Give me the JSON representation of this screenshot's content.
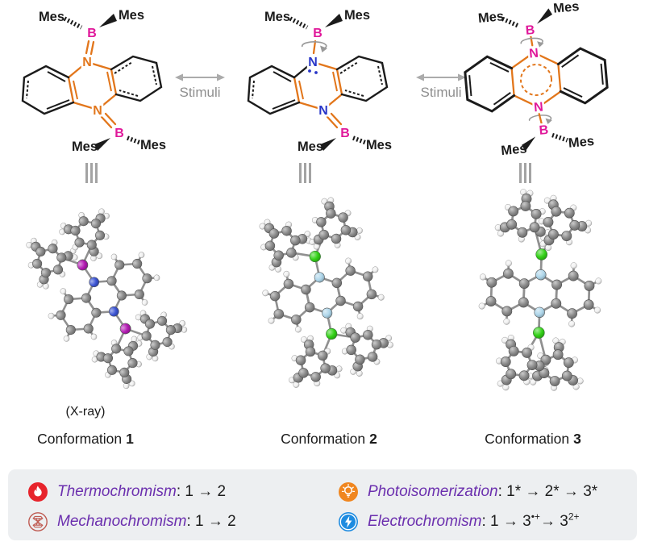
{
  "top_row": {
    "stimuli_label": "Stimuli",
    "structures": [
      {
        "labels": {
          "mes_tl": "Mes",
          "mes_tr": "Mes",
          "mes_bl": "Mes",
          "mes_br": "Mes",
          "b_top": "B",
          "b_bottom": "B",
          "n_top": "N",
          "n_bottom": "N"
        }
      },
      {
        "labels": {
          "mes_tl": "Mes",
          "mes_tr": "Mes",
          "mes_bl": "Mes",
          "mes_br": "Mes",
          "b_top": "B",
          "b_bottom": "B",
          "n_top": "N",
          "n_bottom": "N"
        }
      },
      {
        "labels": {
          "mes_tl": "Mes",
          "mes_tr": "Mes",
          "mes_bl": "Mes",
          "mes_br": "Mes",
          "b_top": "B",
          "b_bottom": "B",
          "n_top": "N",
          "n_bottom": "N"
        }
      }
    ]
  },
  "middle_row": {
    "xray_note": "(X-ray)",
    "conformations": [
      {
        "label": "Conformation",
        "number": "1"
      },
      {
        "label": "Conformation",
        "number": "2"
      },
      {
        "label": "Conformation",
        "number": "3"
      }
    ]
  },
  "colors": {
    "bond_orange": "#e2761b",
    "boron_label_magenta": "#e0189a",
    "nitrogen_blue": "#2936c8",
    "gray_arrow": "#ababab",
    "stimuli_text": "#8f8f8f",
    "legend_background": "#edeff1",
    "legend_name_purple": "#6b2fae"
  },
  "molecules": [
    {
      "carbon": "#8a8a8a",
      "hydrogen": "#f1f1f1",
      "boron": "#b21bb2",
      "nitrogen": "#3c55d4"
    },
    {
      "carbon": "#8a8a8a",
      "hydrogen": "#f1f1f1",
      "boron": "#33d117",
      "nitrogen": "#aed6ea"
    },
    {
      "carbon": "#8a8a8a",
      "hydrogen": "#f1f1f1",
      "boron": "#33d117",
      "nitrogen": "#aed6ea"
    }
  ],
  "legend": {
    "entries": [
      {
        "icon": "flame-icon",
        "badge": "#e7242c",
        "name": "Thermochromism",
        "sequence": [
          {
            "t": ": 1 → 2"
          }
        ]
      },
      {
        "icon": "diamond-hourglass-icon",
        "badge": "#bf5b52",
        "name": "Mechanochromism",
        "sequence": [
          {
            "t": ": 1 → 2"
          }
        ]
      },
      {
        "icon": "lightbulb-icon",
        "badge": "#f0861f",
        "name": "Photoisomerization",
        "sequence": [
          {
            "t": ": 1* → 2* → 3*"
          }
        ]
      },
      {
        "icon": "lightning-icon",
        "badge": "#1d8be0",
        "name": "Electrochromism",
        "sequence": [
          {
            "t": ": 1 → 3"
          },
          {
            "sup": "•+"
          },
          {
            "t": "→ 3"
          },
          {
            "sup": "2+"
          }
        ]
      }
    ]
  }
}
